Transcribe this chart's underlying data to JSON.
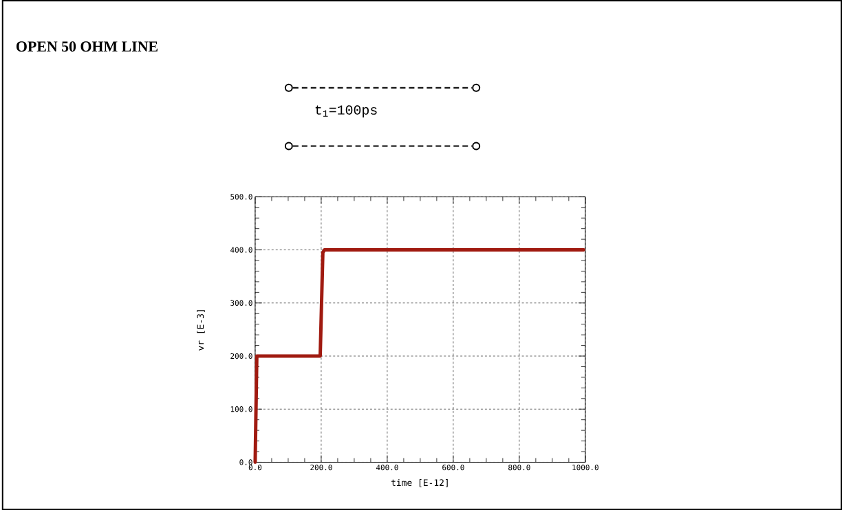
{
  "chart_data": {
    "type": "line",
    "title": "OPEN 50 OHM LINE",
    "xlabel": "time [E-12]",
    "ylabel": "vr [E-3]",
    "annotations": [
      "t$_{1}$=100ps"
    ],
    "x": [
      0,
      5,
      197,
      205,
      210,
      995
    ],
    "series": [
      {
        "color": "#a01a10",
        "values": [
          0,
          200,
          200,
          395,
          400,
          400
        ]
      }
    ],
    "xlim": [
      0,
      1000
    ],
    "ylim": [
      0,
      500
    ],
    "xticks": [
      {
        "value": 0,
        "label": "0.0"
      },
      {
        "value": 200,
        "label": "200.0"
      },
      {
        "value": 400,
        "label": "400.0"
      },
      {
        "value": 600,
        "label": "600.0"
      },
      {
        "value": 800,
        "label": "800.0"
      },
      {
        "value": 1000,
        "label": "1000.0"
      }
    ],
    "yticks": [
      {
        "value": 0,
        "label": "0.0"
      },
      {
        "value": 100,
        "label": "100.0"
      },
      {
        "value": 200,
        "label": "200.0"
      },
      {
        "value": 300,
        "label": "300.0"
      },
      {
        "value": 400,
        "label": "400.0"
      },
      {
        "value": 500,
        "label": "500.0"
      }
    ],
    "grid": true,
    "marker": "none",
    "line_style": "solid"
  }
}
